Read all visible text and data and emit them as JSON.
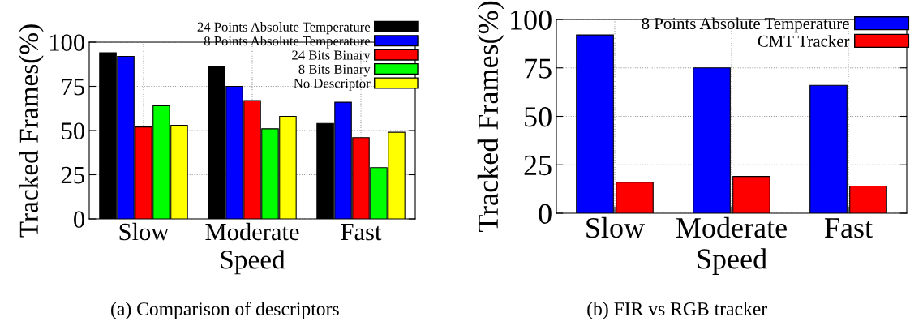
{
  "chart_data": [
    {
      "type": "bar",
      "categories": [
        "Slow",
        "Moderate",
        "Fast"
      ],
      "xlabel": "Speed",
      "ylabel": "Tracked Frames(%)",
      "ylim": [
        0,
        100
      ],
      "yticks": [
        0,
        25,
        50,
        75,
        100
      ],
      "grid": true,
      "legend": "top right",
      "series": [
        {
          "name": "24 Points Absolute Temperature",
          "color": "#000000",
          "values": [
            94,
            86,
            54
          ]
        },
        {
          "name": "8 Points Absolute Temperature",
          "color": "#0000ff",
          "values": [
            92,
            75,
            66
          ]
        },
        {
          "name": "24 Bits Binary",
          "color": "#ff0000",
          "values": [
            52,
            67,
            46
          ]
        },
        {
          "name": "8 Bits Binary",
          "color": "#00ff00",
          "values": [
            64,
            51,
            29
          ]
        },
        {
          "name": "No Descriptor",
          "color": "#ffff00",
          "values": [
            53,
            58,
            49
          ]
        }
      ],
      "annotations": [
        "(a) Comparison of descriptors"
      ]
    },
    {
      "type": "bar",
      "categories": [
        "Slow",
        "Moderate",
        "Fast"
      ],
      "xlabel": "Speed",
      "ylabel": "Tracked Frames(%)",
      "ylim": [
        0,
        100
      ],
      "yticks": [
        0,
        25,
        50,
        75,
        100
      ],
      "grid": true,
      "legend": "top right",
      "series": [
        {
          "name": "8 Points Absolute Temperature",
          "color": "#0000ff",
          "values": [
            92,
            75,
            66
          ]
        },
        {
          "name": "CMT Tracker",
          "color": "#ff0000",
          "values": [
            16,
            19,
            14
          ]
        }
      ],
      "annotations": [
        "(b) FIR vs RGB tracker"
      ]
    }
  ]
}
